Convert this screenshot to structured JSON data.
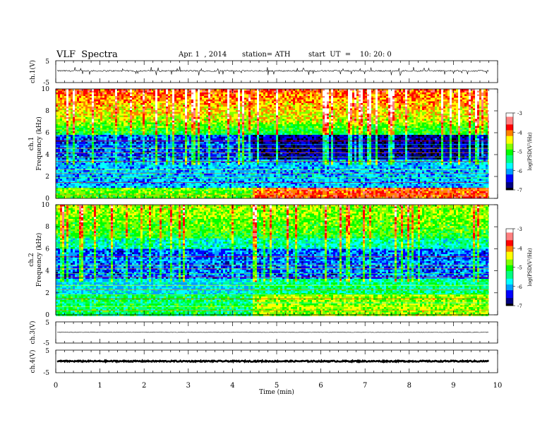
{
  "header": {
    "title": "VLF  Spectra",
    "date": "Apr. 1  , 2014",
    "station": "station= ATH",
    "start": "start  UT  =    10: 20: 0"
  },
  "chart_data": [
    {
      "type": "line",
      "ylabel": "ch.1(V)",
      "ylim": [
        -5,
        5
      ],
      "yticks": [
        "5",
        "-5"
      ],
      "description_level": "noisy waveform around about +1 V with spikes to about -1 V"
    },
    {
      "type": "heatmap",
      "ylabel_channel": "ch.1",
      "ylabel": "Frequency  (kHz)",
      "ylim": [
        0,
        10
      ],
      "yticks": [
        "0",
        "2",
        "4",
        "6",
        "8",
        "10"
      ],
      "colorbar": {
        "label": "log(PSD(V²/Hz)",
        "ticks": [
          "-3",
          "-4",
          "-5",
          "-6",
          "-7"
        ],
        "range": [
          -7,
          -3
        ]
      }
    },
    {
      "type": "heatmap",
      "ylabel_channel": "ch.2",
      "ylabel": "Frequency  (kHz)",
      "ylim": [
        0,
        10
      ],
      "yticks": [
        "0",
        "2",
        "4",
        "6",
        "8",
        "10"
      ],
      "colorbar": {
        "label": "log(PSD(V²/Hz)",
        "ticks": [
          "-3",
          "-4",
          "-5",
          "-6",
          "-7"
        ],
        "range": [
          -7,
          -3
        ]
      }
    },
    {
      "type": "line",
      "ylabel": "ch.3(V)",
      "ylim": [
        -5,
        5
      ],
      "yticks": [
        "5",
        "-5"
      ]
    },
    {
      "type": "line",
      "ylabel": "ch.4(V)",
      "ylim": [
        -5,
        5
      ],
      "yticks": [
        "5",
        "-5"
      ]
    }
  ],
  "xaxis": {
    "xlabel": "Time  (min)",
    "xlim": [
      0,
      10
    ],
    "xticks": [
      "0",
      "1",
      "2",
      "3",
      "4",
      "5",
      "6",
      "7",
      "8",
      "9",
      "10"
    ],
    "data_end": 9.8,
    "transition": 4.45
  },
  "colors": {
    "spectrogram": [
      "#000000",
      "#000080",
      "#0000ff",
      "#00a0ff",
      "#00ffff",
      "#00ff80",
      "#00ff00",
      "#80ff00",
      "#ffff00",
      "#ff8000",
      "#ff0000",
      "#ff8080",
      "#ffffff"
    ]
  }
}
